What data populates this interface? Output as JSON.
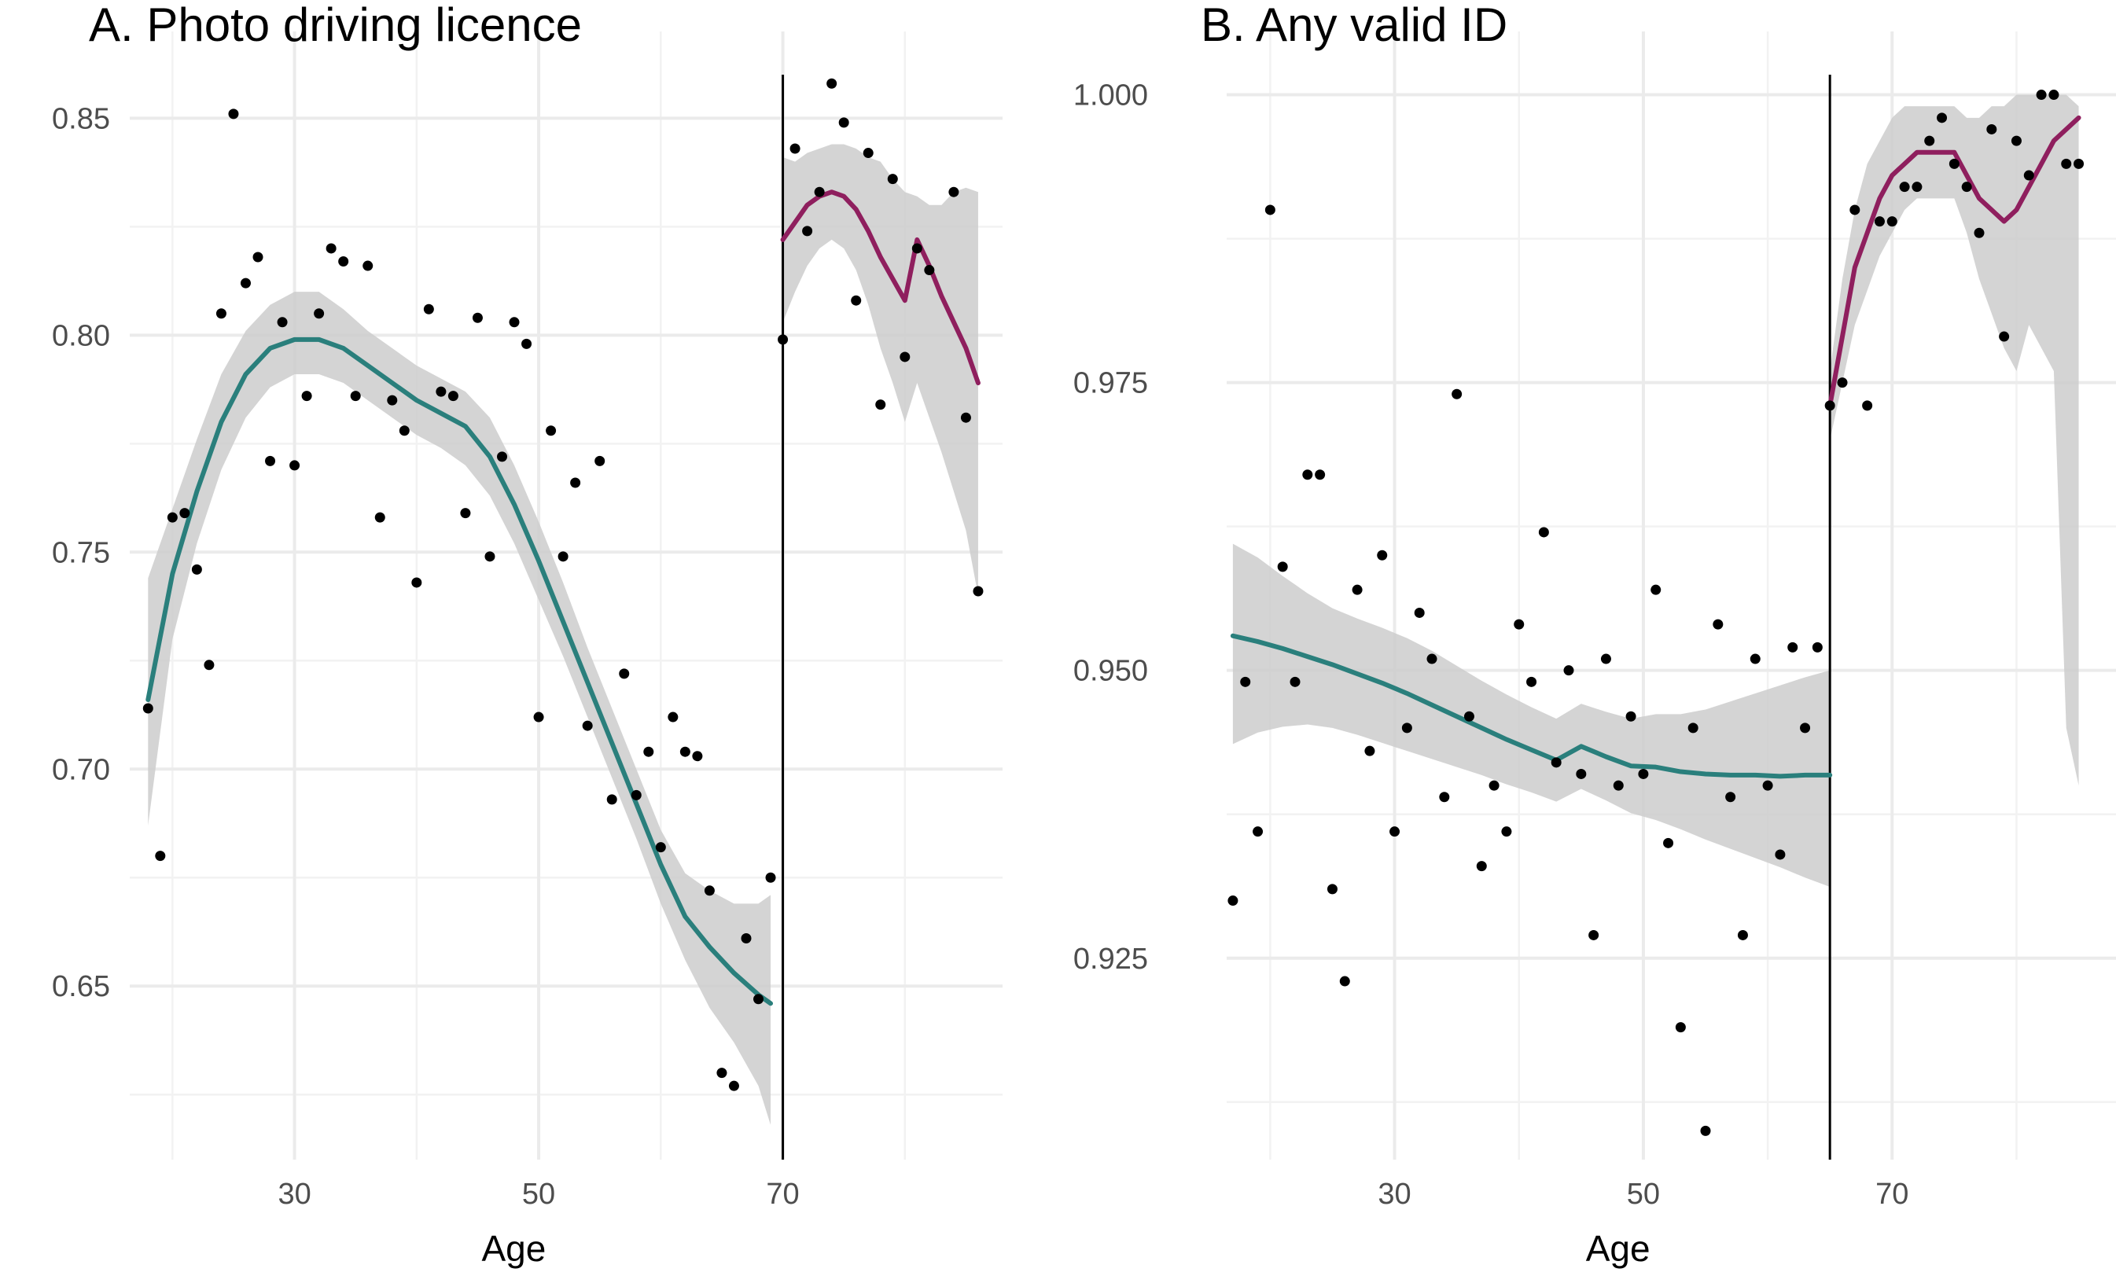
{
  "chart_data": [
    {
      "type": "scatter",
      "title": "A. Photo driving licence",
      "xlabel": "Age",
      "ylabel": "",
      "xlim": [
        16.5,
        88
      ],
      "ylim": [
        0.61,
        0.87
      ],
      "xticks": [
        30,
        50,
        70
      ],
      "yticks": [
        0.65,
        0.7,
        0.75,
        0.8,
        0.85
      ],
      "ytick_labels": [
        "0.65",
        "0.70",
        "0.75",
        "0.80",
        "0.85"
      ],
      "cutoff": 70,
      "grid": true,
      "points": {
        "x": [
          18,
          19,
          20,
          21,
          22,
          23,
          24,
          25,
          26,
          27,
          28,
          29,
          30,
          31,
          32,
          33,
          34,
          35,
          36,
          37,
          38,
          39,
          40,
          41,
          42,
          43,
          44,
          45,
          46,
          47,
          48,
          49,
          50,
          51,
          52,
          53,
          54,
          55,
          56,
          57,
          58,
          59,
          60,
          61,
          62,
          63,
          64,
          65,
          66,
          67,
          68,
          69,
          70,
          71,
          72,
          73,
          74,
          75,
          76,
          77,
          78,
          79,
          80,
          81,
          82,
          84,
          85,
          86
        ],
        "y": [
          0.714,
          0.68,
          0.758,
          0.759,
          0.746,
          0.724,
          0.805,
          0.851,
          0.812,
          0.818,
          0.771,
          0.803,
          0.77,
          0.786,
          0.805,
          0.82,
          0.817,
          0.786,
          0.816,
          0.758,
          0.785,
          0.778,
          0.743,
          0.806,
          0.787,
          0.786,
          0.759,
          0.804,
          0.749,
          0.772,
          0.803,
          0.798,
          0.712,
          0.778,
          0.749,
          0.766,
          0.71,
          0.771,
          0.693,
          0.722,
          0.694,
          0.704,
          0.682,
          0.712,
          0.704,
          0.703,
          0.672,
          0.63,
          0.627,
          0.661,
          0.647,
          0.675,
          0.799,
          0.843,
          0.824,
          0.833,
          0.858,
          0.849,
          0.808,
          0.842,
          0.784,
          0.836,
          0.795,
          0.82,
          0.815,
          0.833,
          0.781,
          0.741
        ]
      },
      "fit_below": {
        "x": [
          18,
          20,
          22,
          24,
          26,
          28,
          30,
          32,
          34,
          36,
          38,
          40,
          42,
          44,
          46,
          48,
          50,
          52,
          54,
          56,
          58,
          60,
          62,
          64,
          66,
          68,
          69
        ],
        "y": [
          0.716,
          0.745,
          0.764,
          0.78,
          0.791,
          0.797,
          0.799,
          0.799,
          0.797,
          0.793,
          0.789,
          0.785,
          0.782,
          0.779,
          0.772,
          0.761,
          0.748,
          0.734,
          0.72,
          0.706,
          0.692,
          0.678,
          0.666,
          0.659,
          0.653,
          0.648,
          0.646
        ],
        "lower": [
          0.687,
          0.73,
          0.752,
          0.769,
          0.781,
          0.788,
          0.791,
          0.791,
          0.789,
          0.785,
          0.781,
          0.777,
          0.774,
          0.77,
          0.763,
          0.752,
          0.739,
          0.726,
          0.712,
          0.698,
          0.684,
          0.669,
          0.656,
          0.645,
          0.637,
          0.627,
          0.618
        ],
        "upper": [
          0.744,
          0.76,
          0.776,
          0.791,
          0.801,
          0.807,
          0.81,
          0.81,
          0.806,
          0.801,
          0.797,
          0.793,
          0.79,
          0.787,
          0.781,
          0.77,
          0.757,
          0.743,
          0.728,
          0.714,
          0.7,
          0.686,
          0.676,
          0.672,
          0.669,
          0.669,
          0.671
        ],
        "color": "#2a7f7c"
      },
      "fit_above": {
        "x": [
          70,
          71,
          72,
          73,
          74,
          75,
          76,
          77,
          78,
          79,
          80,
          81,
          82,
          83,
          84,
          85,
          86
        ],
        "y": [
          0.822,
          0.826,
          0.83,
          0.832,
          0.833,
          0.832,
          0.829,
          0.824,
          0.818,
          0.813,
          0.808,
          0.822,
          0.816,
          0.809,
          0.803,
          0.797,
          0.789
        ],
        "lower": [
          0.803,
          0.81,
          0.816,
          0.82,
          0.822,
          0.82,
          0.815,
          0.807,
          0.797,
          0.789,
          0.78,
          0.789,
          0.781,
          0.773,
          0.764,
          0.755,
          0.74
        ],
        "upper": [
          0.841,
          0.84,
          0.842,
          0.843,
          0.844,
          0.844,
          0.843,
          0.841,
          0.84,
          0.836,
          0.833,
          0.832,
          0.83,
          0.83,
          0.833,
          0.834,
          0.833
        ],
        "color": "#8f1f5e"
      }
    },
    {
      "type": "scatter",
      "title": "B. Any valid ID",
      "xlabel": "Age",
      "ylabel": "",
      "xlim": [
        16.5,
        88
      ],
      "ylim": [
        0.9075,
        1.0055
      ],
      "xticks": [
        30,
        50,
        70
      ],
      "yticks": [
        0.925,
        0.95,
        0.975,
        1.0
      ],
      "ytick_labels": [
        "0.925",
        "0.950",
        "0.975",
        "1.000"
      ],
      "cutoff": 65,
      "grid": true,
      "points": {
        "x": [
          17,
          18,
          19,
          20,
          21,
          22,
          23,
          24,
          25,
          26,
          27,
          28,
          29,
          30,
          31,
          32,
          33,
          34,
          35,
          36,
          37,
          38,
          39,
          40,
          41,
          42,
          43,
          44,
          45,
          46,
          47,
          48,
          49,
          50,
          51,
          52,
          53,
          54,
          55,
          56,
          57,
          58,
          59,
          60,
          61,
          62,
          63,
          64,
          65,
          66,
          67,
          68,
          69,
          70,
          71,
          72,
          73,
          74,
          75,
          76,
          77,
          78,
          79,
          80,
          81,
          82,
          83,
          84,
          85
        ],
        "y": [
          0.93,
          0.949,
          0.936,
          0.99,
          0.959,
          0.949,
          0.967,
          0.967,
          0.931,
          0.923,
          0.957,
          0.943,
          0.96,
          0.936,
          0.945,
          0.955,
          0.951,
          0.939,
          0.974,
          0.946,
          0.933,
          0.94,
          0.936,
          0.954,
          0.949,
          0.962,
          0.942,
          0.95,
          0.941,
          0.927,
          0.951,
          0.94,
          0.946,
          0.941,
          0.957,
          0.935,
          0.919,
          0.945,
          0.91,
          0.954,
          0.939,
          0.927,
          0.951,
          0.94,
          0.934,
          0.952,
          0.945,
          0.952,
          0.973,
          0.975,
          0.99,
          0.973,
          0.989,
          0.989,
          0.992,
          0.992,
          0.996,
          0.998,
          0.994,
          0.992,
          0.988,
          0.997,
          0.979,
          0.996,
          0.993,
          1.0,
          1.0,
          0.994,
          0.994
        ]
      },
      "fit_below": {
        "x": [
          17,
          19,
          21,
          23,
          25,
          27,
          29,
          31,
          33,
          35,
          37,
          39,
          41,
          43,
          45,
          47,
          49,
          51,
          53,
          55,
          57,
          59,
          61,
          63,
          65
        ],
        "y": [
          0.953,
          0.9525,
          0.9519,
          0.9512,
          0.9505,
          0.9497,
          0.9489,
          0.948,
          0.947,
          0.946,
          0.945,
          0.944,
          0.9431,
          0.9422,
          0.9434,
          0.9425,
          0.9417,
          0.9416,
          0.9412,
          0.941,
          0.9409,
          0.9409,
          0.9408,
          0.9409,
          0.9409
        ],
        "lower": [
          0.9436,
          0.9446,
          0.9451,
          0.9453,
          0.945,
          0.9444,
          0.9437,
          0.943,
          0.9423,
          0.9416,
          0.9409,
          0.9401,
          0.9394,
          0.9386,
          0.9397,
          0.9387,
          0.9376,
          0.937,
          0.9362,
          0.9353,
          0.9345,
          0.9337,
          0.9329,
          0.932,
          0.9312
        ],
        "upper": [
          0.961,
          0.9598,
          0.9582,
          0.9567,
          0.9554,
          0.9545,
          0.9537,
          0.9528,
          0.9517,
          0.9504,
          0.9491,
          0.9479,
          0.9468,
          0.9458,
          0.9471,
          0.9464,
          0.9458,
          0.9462,
          0.9462,
          0.9466,
          0.9473,
          0.948,
          0.9487,
          0.9494,
          0.95
        ],
        "color": "#2a7f7c"
      },
      "fit_above": {
        "x": [
          65,
          66,
          67,
          68,
          69,
          70,
          71,
          72,
          73,
          74,
          75,
          76,
          77,
          78,
          79,
          80,
          81,
          82,
          83,
          84,
          85
        ],
        "y": [
          0.973,
          0.979,
          0.985,
          0.988,
          0.991,
          0.993,
          0.994,
          0.995,
          0.995,
          0.995,
          0.995,
          0.993,
          0.991,
          0.99,
          0.989,
          0.99,
          0.992,
          0.994,
          0.996,
          0.997,
          0.998
        ],
        "lower": [
          0.97,
          0.975,
          0.98,
          0.983,
          0.986,
          0.988,
          0.99,
          0.991,
          0.991,
          0.991,
          0.991,
          0.988,
          0.984,
          0.981,
          0.978,
          0.976,
          0.98,
          0.978,
          0.976,
          0.945,
          0.94
        ],
        "upper": [
          0.976,
          0.984,
          0.99,
          0.994,
          0.996,
          0.998,
          0.999,
          0.999,
          0.999,
          0.999,
          0.999,
          0.998,
          0.998,
          0.999,
          0.999,
          1.0,
          1.0,
          1.0,
          1.0,
          1.0,
          0.999
        ],
        "color": "#8f1f5e"
      }
    }
  ]
}
